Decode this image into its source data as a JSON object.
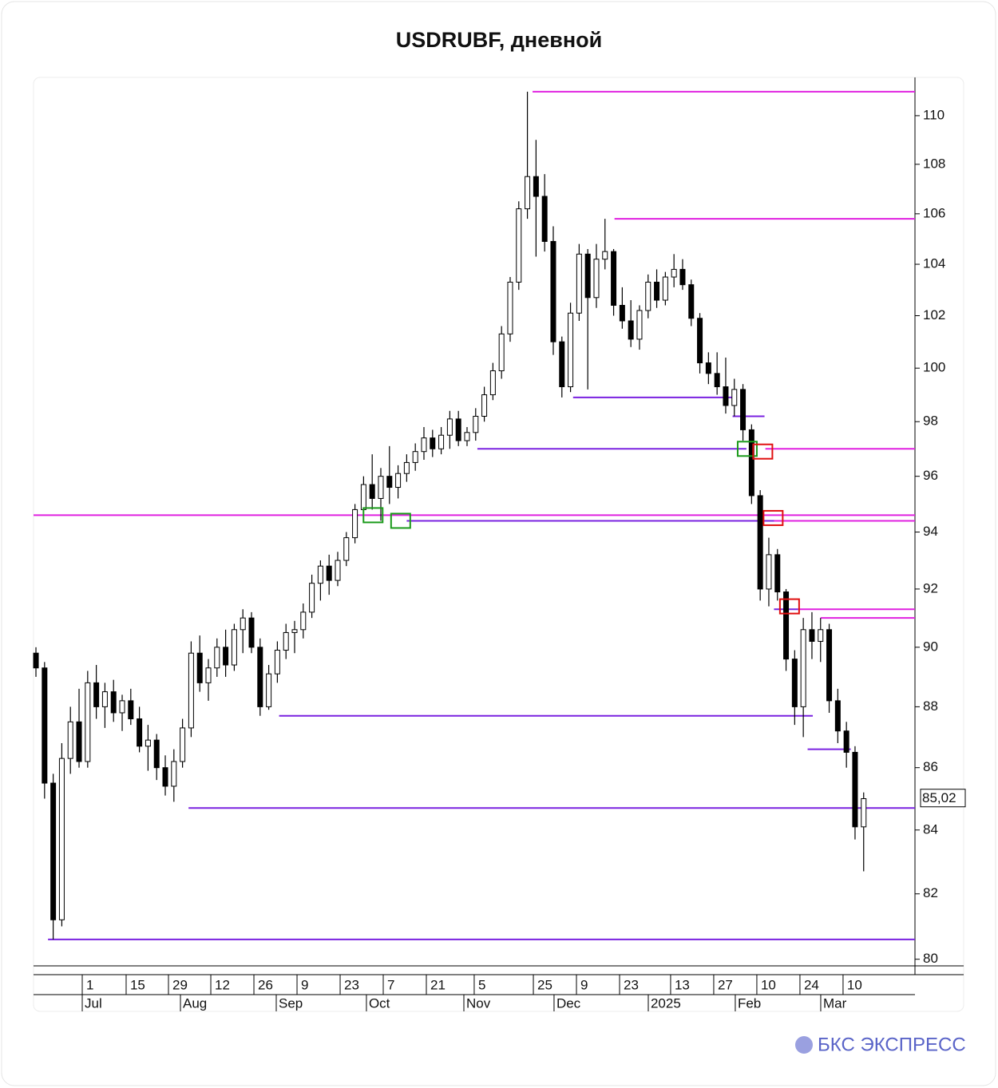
{
  "chart_data": {
    "type": "candlestick",
    "title": "USDRUBF, дневной",
    "log_scale": true,
    "grid": false,
    "up_color": "#ffffff",
    "down_color": "#000000",
    "ylim": [
      79.8,
      111.6
    ],
    "yticks": [
      80,
      82,
      84,
      86,
      88,
      90,
      92,
      94,
      96,
      98,
      100,
      102,
      104,
      106,
      108,
      110
    ],
    "xlim": [
      -0.28,
      101.95
    ],
    "xticks": [
      {
        "value": 5.37,
        "label": "1"
      },
      {
        "value": 10.46,
        "label": "15"
      },
      {
        "value": 15.37,
        "label": "29"
      },
      {
        "value": 20.28,
        "label": "12"
      },
      {
        "value": 25.28,
        "label": "26"
      },
      {
        "value": 30.28,
        "label": "9"
      },
      {
        "value": 35.28,
        "label": "23"
      },
      {
        "value": 40.28,
        "label": "7"
      },
      {
        "value": 45.28,
        "label": "21"
      },
      {
        "value": 50.83,
        "label": "5"
      },
      {
        "value": 57.69,
        "label": "25"
      },
      {
        "value": 62.69,
        "label": "9"
      },
      {
        "value": 67.69,
        "label": "23"
      },
      {
        "value": 73.61,
        "label": "13"
      },
      {
        "value": 78.61,
        "label": "27"
      },
      {
        "value": 83.61,
        "label": "10"
      },
      {
        "value": 88.61,
        "label": "24"
      },
      {
        "value": 93.61,
        "label": "10"
      }
    ],
    "month_ticks": [
      {
        "value": 5.37,
        "label": "Jul"
      },
      {
        "value": 16.76,
        "label": "Aug"
      },
      {
        "value": 27.87,
        "label": "Sep"
      },
      {
        "value": 38.33,
        "label": "Oct"
      },
      {
        "value": 49.63,
        "label": "Nov"
      },
      {
        "value": 60.09,
        "label": "Dec"
      },
      {
        "value": 71.02,
        "label": "2025"
      },
      {
        "value": 81.11,
        "label": "Feb"
      },
      {
        "value": 91.02,
        "label": "Mar"
      }
    ],
    "last_price": {
      "value": 85.02,
      "label": "85,02"
    },
    "candles": [
      [
        89.8,
        90,
        89,
        89.3
      ],
      [
        89.3,
        89.5,
        85,
        85.5
      ],
      [
        85.5,
        85.8,
        80.6,
        81.2
      ],
      [
        81.2,
        86.8,
        81,
        86.3
      ],
      [
        86.3,
        88,
        85.8,
        87.5
      ],
      [
        87.5,
        88.6,
        86,
        86.2
      ],
      [
        86.2,
        89.2,
        86,
        88.8
      ],
      [
        88.8,
        89.4,
        87.6,
        88
      ],
      [
        88,
        88.8,
        87.3,
        88.5
      ],
      [
        88.5,
        88.9,
        87.5,
        87.8
      ],
      [
        87.8,
        88.4,
        87.2,
        88.2
      ],
      [
        88.2,
        88.6,
        87.4,
        87.6
      ],
      [
        87.6,
        88,
        86.5,
        86.7
      ],
      [
        86.7,
        87.4,
        85.9,
        86.9
      ],
      [
        86.9,
        87.1,
        85.6,
        86
      ],
      [
        86,
        86.4,
        85.1,
        85.4
      ],
      [
        85.4,
        86.6,
        84.9,
        86.2
      ],
      [
        86.2,
        87.6,
        86,
        87.3
      ],
      [
        87.3,
        90.2,
        87,
        89.8
      ],
      [
        89.8,
        90.4,
        88.5,
        88.8
      ],
      [
        88.8,
        89.6,
        88.2,
        89.3
      ],
      [
        89.3,
        90.3,
        89,
        90
      ],
      [
        90,
        90.6,
        89,
        89.4
      ],
      [
        89.4,
        90.8,
        89.2,
        90.6
      ],
      [
        90.6,
        91.3,
        89.8,
        91
      ],
      [
        91,
        91.2,
        89.8,
        90
      ],
      [
        90,
        90.3,
        87.7,
        88
      ],
      [
        88,
        89.4,
        87.9,
        89.1
      ],
      [
        89.1,
        90.2,
        88.8,
        89.9
      ],
      [
        89.9,
        90.8,
        89.6,
        90.5
      ],
      [
        90.5,
        90.9,
        89.8,
        90.6
      ],
      [
        90.6,
        91.5,
        90.3,
        91.2
      ],
      [
        91.2,
        92.5,
        91,
        92.2
      ],
      [
        92.2,
        93,
        91.6,
        92.8
      ],
      [
        92.8,
        93.2,
        91.8,
        92.3
      ],
      [
        92.3,
        93.3,
        92.1,
        93
      ],
      [
        93,
        94,
        92.8,
        93.8
      ],
      [
        93.8,
        95,
        93.6,
        94.8
      ],
      [
        94.8,
        96,
        94.6,
        95.7
      ],
      [
        95.7,
        96.8,
        94.8,
        95.2
      ],
      [
        95.2,
        96.3,
        94.4,
        96
      ],
      [
        96,
        97.1,
        95,
        95.6
      ],
      [
        95.6,
        96.4,
        95.2,
        96.1
      ],
      [
        96.1,
        96.8,
        95.8,
        96.5
      ],
      [
        96.5,
        97.2,
        96.2,
        96.9
      ],
      [
        96.9,
        97.8,
        96.6,
        97.4
      ],
      [
        97.4,
        97.7,
        96.7,
        97
      ],
      [
        97,
        97.8,
        96.8,
        97.5
      ],
      [
        97.5,
        98.4,
        97,
        98.1
      ],
      [
        98.1,
        98.4,
        97.1,
        97.3
      ],
      [
        97.3,
        97.8,
        97.1,
        97.6
      ],
      [
        97.6,
        98.5,
        97.3,
        98.2
      ],
      [
        98.2,
        99.3,
        98,
        99
      ],
      [
        99,
        100.2,
        98.8,
        99.9
      ],
      [
        99.9,
        101.6,
        99.6,
        101.3
      ],
      [
        101.3,
        103.5,
        101,
        103.3
      ],
      [
        103.3,
        106.5,
        103,
        106.2
      ],
      [
        106.2,
        111,
        105.8,
        107.5
      ],
      [
        107.5,
        109,
        104.3,
        106.7
      ],
      [
        106.7,
        107.6,
        104.5,
        104.9
      ],
      [
        104.9,
        105.5,
        100.5,
        101
      ],
      [
        101,
        101.2,
        98.9,
        99.3
      ],
      [
        99.3,
        102.5,
        99.1,
        102.1
      ],
      [
        102.1,
        104.8,
        101.8,
        104.4
      ],
      [
        104.4,
        104.6,
        99.2,
        102.7
      ],
      [
        102.7,
        104.8,
        102.3,
        104.2
      ],
      [
        104.2,
        105.8,
        103.8,
        104.5
      ],
      [
        104.5,
        104.6,
        102,
        102.4
      ],
      [
        102.4,
        103.1,
        101.5,
        101.8
      ],
      [
        101.8,
        102.6,
        100.8,
        101.1
      ],
      [
        101.1,
        102.4,
        100.7,
        102.2
      ],
      [
        102.2,
        103.6,
        101.9,
        103.3
      ],
      [
        103.3,
        103.8,
        102.3,
        102.6
      ],
      [
        102.6,
        103.7,
        102.4,
        103.5
      ],
      [
        103.5,
        104.4,
        103.1,
        103.8
      ],
      [
        103.8,
        104.2,
        103,
        103.2
      ],
      [
        103.2,
        103.4,
        101.6,
        101.9
      ],
      [
        101.9,
        102.1,
        99.8,
        100.2
      ],
      [
        100.2,
        100.6,
        99.4,
        99.8
      ],
      [
        99.8,
        100.6,
        99,
        99.3
      ],
      [
        99.3,
        100.4,
        98.3,
        98.6
      ],
      [
        98.6,
        99.6,
        98.2,
        99.2
      ],
      [
        99.2,
        99.4,
        97.3,
        97.7
      ],
      [
        97.7,
        97.9,
        95,
        95.3
      ],
      [
        95.3,
        95.5,
        91.6,
        92
      ],
      [
        92,
        93.8,
        91.4,
        93.2
      ],
      [
        93.2,
        93.4,
        91.6,
        91.9
      ],
      [
        91.9,
        92,
        89.2,
        89.6
      ],
      [
        89.6,
        89.9,
        87.4,
        88
      ],
      [
        88,
        91,
        87,
        90.6
      ],
      [
        90.6,
        91.2,
        89.6,
        90.2
      ],
      [
        90.2,
        91,
        89.5,
        90.6
      ],
      [
        90.6,
        90.8,
        87.8,
        88.2
      ],
      [
        88.2,
        88.6,
        86.8,
        87.2
      ],
      [
        87.2,
        87.5,
        86,
        86.5
      ],
      [
        86.5,
        86.7,
        83.7,
        84.1
      ],
      [
        84.1,
        85.2,
        82.7,
        85
      ]
    ],
    "levels": [
      {
        "value": 111.0,
        "start": 57.6,
        "color": "#e020e0"
      },
      {
        "value": 105.8,
        "start": 67.1,
        "color": "#e020e0"
      },
      {
        "value": 97.0,
        "start": 84.6,
        "color": "#e020e0"
      },
      {
        "value": 94.6,
        "start": -0.28,
        "color": "#e020e0"
      },
      {
        "value": 94.4,
        "start": 85.2,
        "color": "#e020e0"
      },
      {
        "value": 91.3,
        "start": 88.4,
        "color": "#e020e0"
      },
      {
        "value": 91.0,
        "start": 91.0,
        "color": "#e020e0"
      },
      {
        "value": 98.9,
        "start": 62.3,
        "end": 81.0,
        "color": "#7a22e0"
      },
      {
        "value": 98.2,
        "start": 80.8,
        "end": 84.5,
        "color": "#7a22e0"
      },
      {
        "value": 97.0,
        "start": 51.2,
        "end": 82.4,
        "color": "#7a22e0"
      },
      {
        "value": 94.4,
        "start": 43.0,
        "end": 85.6,
        "color": "#7a22e0"
      },
      {
        "value": 91.3,
        "start": 85.6,
        "end": 88.4,
        "color": "#7a22e0"
      },
      {
        "value": 87.7,
        "start": 28.2,
        "end": 90.1,
        "color": "#7a22e0"
      },
      {
        "value": 86.6,
        "start": 89.5,
        "end": 94.5,
        "color": "#7a22e0"
      },
      {
        "value": 84.7,
        "start": 17.7,
        "color": "#7a22e0"
      },
      {
        "value": 80.6,
        "start": 1.4,
        "color": "#7a22e0"
      }
    ],
    "boxes": [
      {
        "x": 39.1,
        "value": 94.6,
        "color": "#1a9a1a"
      },
      {
        "x": 42.3,
        "value": 94.4,
        "color": "#1a9a1a"
      },
      {
        "x": 82.5,
        "value": 97.0,
        "color": "#1a9a1a"
      },
      {
        "x": 84.3,
        "value": 96.9,
        "color": "#e01010"
      },
      {
        "x": 85.5,
        "value": 94.5,
        "color": "#e01010"
      },
      {
        "x": 87.4,
        "value": 91.4,
        "color": "#e01010"
      }
    ]
  },
  "brand": "БКС ЭКСПРЕСС"
}
